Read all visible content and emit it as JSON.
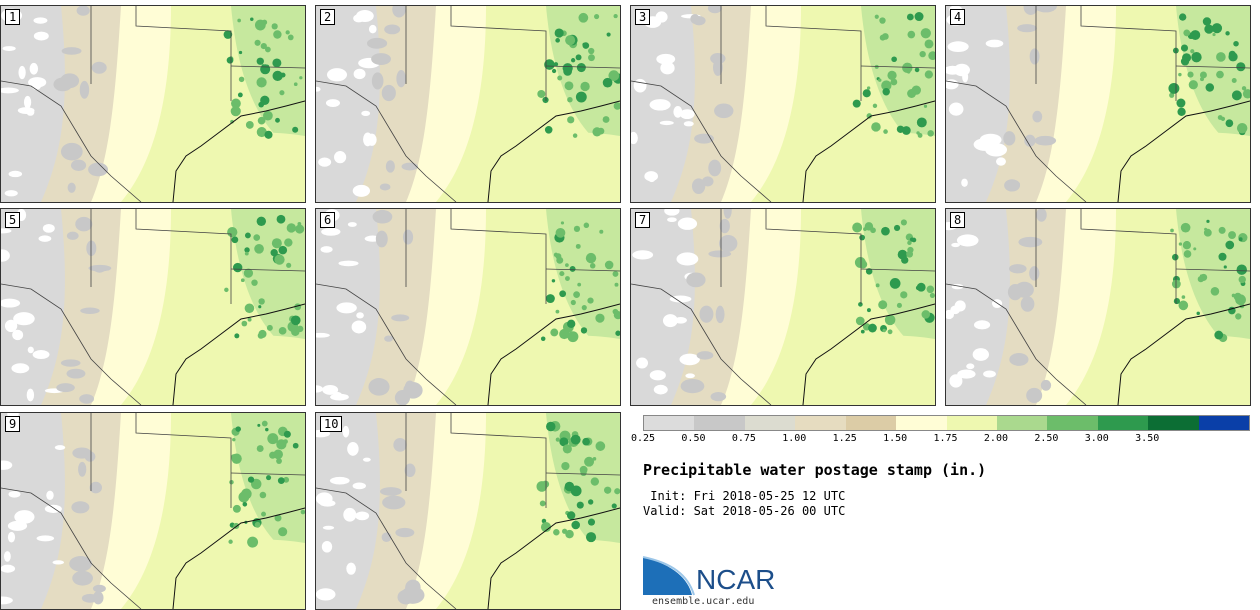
{
  "panels": [
    {
      "label": "1"
    },
    {
      "label": "2"
    },
    {
      "label": "3"
    },
    {
      "label": "4"
    },
    {
      "label": "5"
    },
    {
      "label": "6"
    },
    {
      "label": "7"
    },
    {
      "label": "8"
    },
    {
      "label": "9"
    },
    {
      "label": "10"
    }
  ],
  "legend": {
    "colors": [
      "#dcdcdc",
      "#c8c8c8",
      "#dcdcd0",
      "#e6dcc0",
      "#dccca6",
      "#fffdd6",
      "#eef8b0",
      "#aad98e",
      "#6cbd6a",
      "#2e9a4e",
      "#0c6e34",
      "#0a3fa8"
    ],
    "ticks": [
      "0.25",
      "0.50",
      "0.75",
      "1.00",
      "1.25",
      "1.50",
      "1.75",
      "2.00",
      "2.50",
      "3.00",
      "3.50"
    ]
  },
  "title": "Precipitable water postage stamp (in.)",
  "init": " Init: Fri 2018-05-25 12 UTC",
  "valid": "Valid: Sat 2018-05-26 00 UTC",
  "logo": {
    "name": "NCAR",
    "url": "ensemble.ucar.edu"
  }
}
